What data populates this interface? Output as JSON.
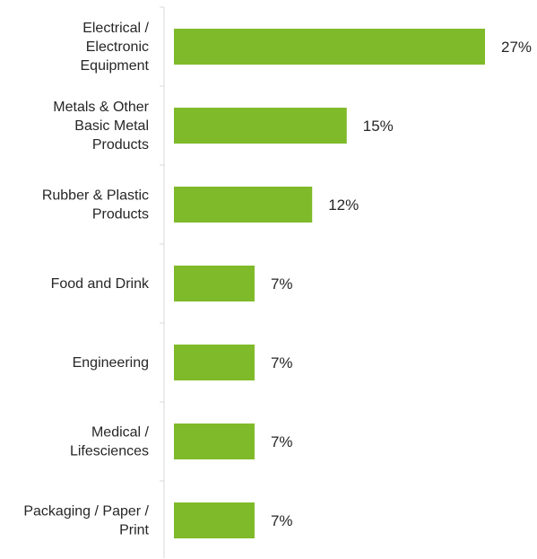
{
  "chart_data": {
    "type": "bar",
    "orientation": "horizontal",
    "categories": [
      [
        "Electrical /",
        "Electronic",
        "Equipment"
      ],
      [
        "Metals & Other",
        "Basic Metal",
        "Products"
      ],
      [
        "Rubber & Plastic",
        "Products"
      ],
      [
        "Food and Drink"
      ],
      [
        "Engineering"
      ],
      [
        "Medical /",
        "Lifesciences"
      ],
      [
        "Packaging / Paper /",
        "Print"
      ]
    ],
    "values": [
      27,
      15,
      12,
      7,
      7,
      7,
      7
    ],
    "value_labels": [
      "27%",
      "15%",
      "12%",
      "7%",
      "7%",
      "7%",
      "7%"
    ],
    "unit": "%",
    "xlim": [
      0,
      27
    ],
    "grid": false,
    "legend": "none",
    "bar_color": "#7fba2a",
    "axis_color": "#d9d9d9",
    "title": "",
    "xlabel": "",
    "ylabel": ""
  }
}
